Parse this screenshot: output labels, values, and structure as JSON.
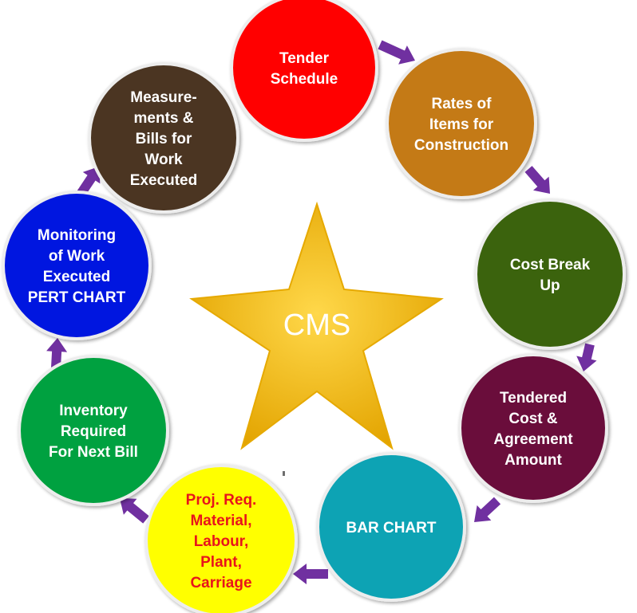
{
  "center": {
    "label": "CMS",
    "star_color": "#F2B705",
    "star_edge": "#C98F00",
    "text_color": "#FFFFFF"
  },
  "arrow_color": "#7030A0",
  "nodes": [
    {
      "id": "tender-schedule",
      "lines": [
        "Tender",
        "Schedule"
      ],
      "fill": "#FF0000",
      "text_color": "#FFFFFF"
    },
    {
      "id": "rates-of-items",
      "lines": [
        "Rates of",
        "Items for",
        "Construction"
      ],
      "fill": "#C47A14",
      "text_color": "#FFFFFF"
    },
    {
      "id": "cost-break-up",
      "lines": [
        "Cost Break",
        "Up"
      ],
      "fill": "#3B640D",
      "text_color": "#FFFFFF"
    },
    {
      "id": "tendered-cost",
      "lines": [
        "Tendered",
        "Cost &",
        "Agreement",
        "Amount"
      ],
      "fill": "#6B0F3B",
      "text_color": "#FFFFFF"
    },
    {
      "id": "bar-chart",
      "lines": [
        "BAR CHART"
      ],
      "fill": "#07A3B4",
      "text_color": "#FFFFFF"
    },
    {
      "id": "proj-req",
      "lines": [
        "Proj. Req.",
        "Material,",
        "Labour,",
        "Plant,",
        "Carriage"
      ],
      "fill": "#FFFF00",
      "text_color": "#E8141B"
    },
    {
      "id": "inventory-required",
      "lines": [
        "Inventory",
        "Required",
        "For Next Bill"
      ],
      "fill": "#05A13F",
      "text_color": "#FFFFFF"
    },
    {
      "id": "monitoring-of-work",
      "lines": [
        "Monitoring",
        "of Work",
        "Executed",
        "PERT CHART"
      ],
      "fill": "#0012E0",
      "text_color": "#FFFFFF"
    },
    {
      "id": "measurements-bills",
      "lines": [
        "Measure-",
        "ments &",
        "Bills for",
        "Work",
        "Executed"
      ],
      "fill": "#4B3622",
      "text_color": "#FFFFFF"
    }
  ]
}
